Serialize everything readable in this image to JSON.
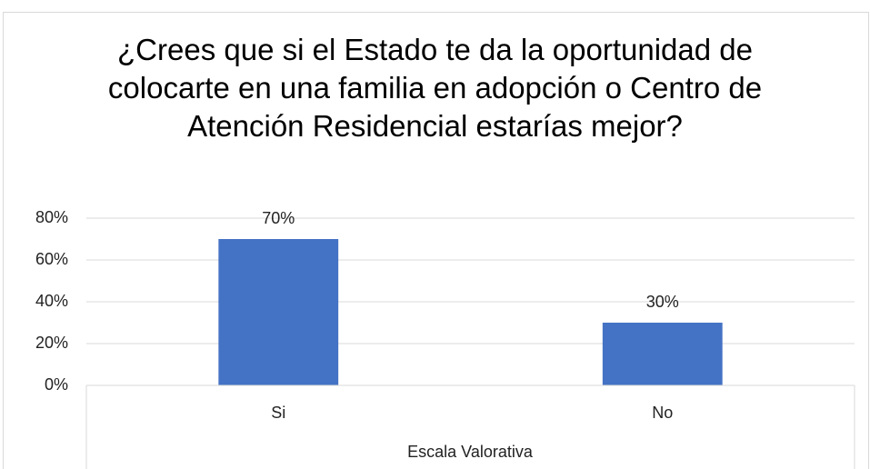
{
  "chart_data": {
    "type": "bar",
    "title": "¿Crees que si el Estado te da la oportunidad de colocarte en una familia en adopción o Centro de Atención Residencial estarías mejor?",
    "categories": [
      "Si",
      "No"
    ],
    "values": [
      70,
      30
    ],
    "value_labels": [
      "70%",
      "30%"
    ],
    "color": "#4472c4",
    "x_label": "Escala Valorativa",
    "ylim": [
      0,
      80
    ],
    "yticks": [
      {
        "value": 0,
        "label": "0%"
      },
      {
        "value": 20,
        "label": "20%"
      },
      {
        "value": 40,
        "label": "40%"
      },
      {
        "value": 60,
        "label": "60%"
      },
      {
        "value": 80,
        "label": "80%"
      }
    ],
    "grid": true
  }
}
